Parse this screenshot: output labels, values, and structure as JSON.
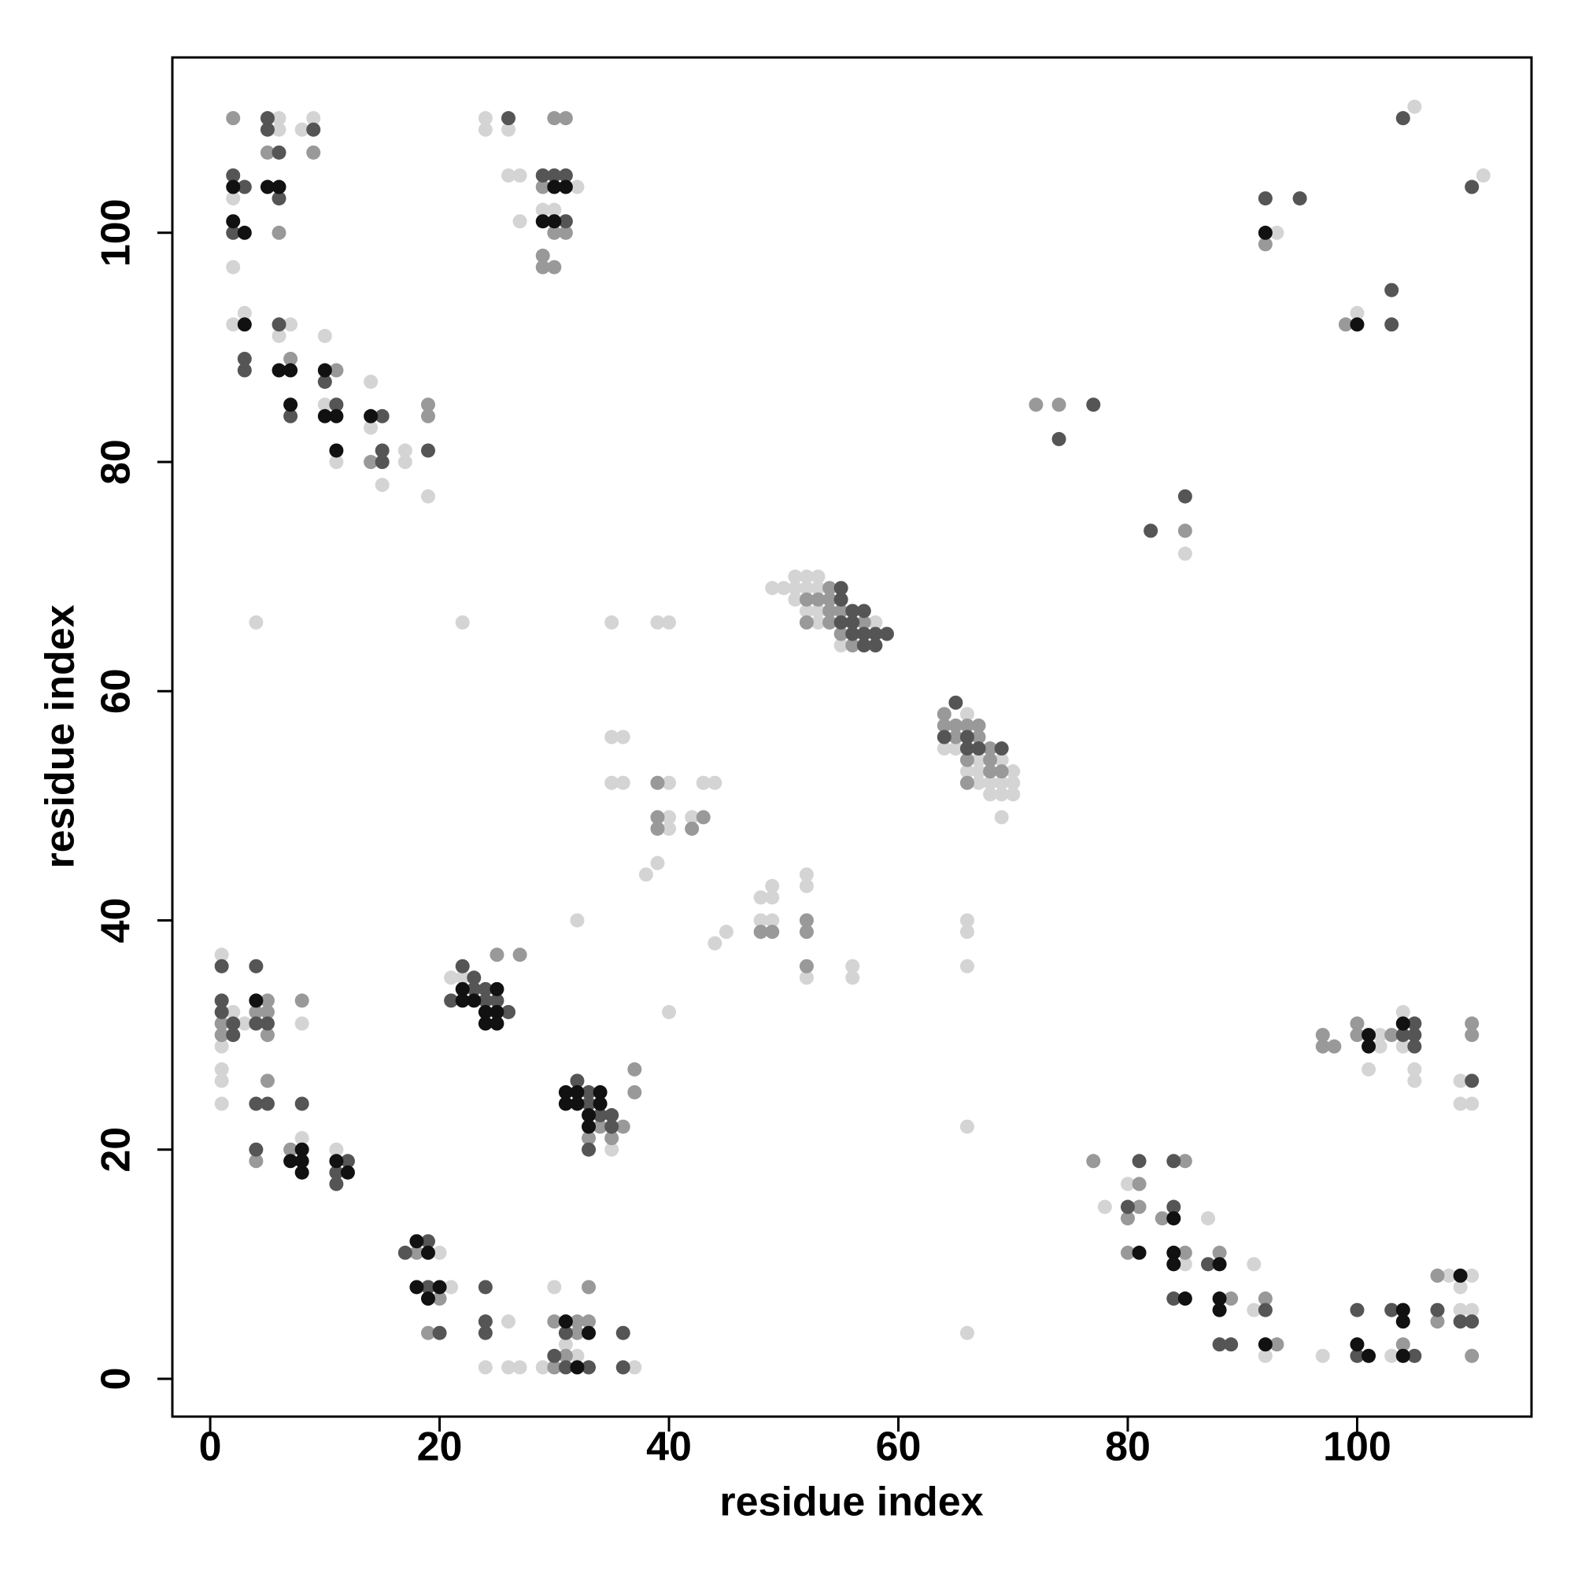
{
  "chart_data": {
    "type": "scatter",
    "x_label": "residue index",
    "y_label": "residue index",
    "xlim": [
      -3.3,
      115.2
    ],
    "ylim": [
      -3.3,
      115.3
    ],
    "xticks": [
      0,
      20,
      40,
      60,
      80,
      100
    ],
    "yticks": [
      0,
      20,
      40,
      60,
      80,
      100
    ],
    "series": [
      {
        "color": "#d4d4d4",
        "x": [
          6,
          9,
          6,
          8,
          2,
          2,
          2,
          3,
          6,
          7,
          10,
          10,
          11,
          14,
          14,
          15,
          17,
          17,
          19,
          4,
          24,
          24,
          26,
          26,
          27,
          27,
          32,
          29,
          30,
          22,
          105,
          111,
          93,
          100,
          85,
          49,
          50,
          51,
          52,
          53,
          51,
          52,
          53,
          51,
          52,
          53,
          53,
          58,
          55,
          35,
          39,
          40,
          66,
          64,
          65,
          67,
          69,
          66,
          67,
          70,
          67,
          68,
          69,
          70,
          68,
          69,
          70,
          69,
          35,
          36,
          35,
          36,
          40,
          43,
          44,
          40,
          42,
          40,
          39,
          38,
          52,
          49,
          48,
          49,
          52,
          48,
          49,
          45,
          44,
          32,
          40,
          56,
          52,
          56,
          66,
          66,
          66,
          66,
          66,
          1,
          2,
          3,
          8,
          1,
          1,
          1,
          1,
          8,
          11,
          20,
          21,
          22,
          21,
          35,
          26,
          24,
          26,
          27,
          30,
          31,
          32,
          29,
          37,
          80,
          78,
          87,
          85,
          91,
          91,
          92,
          97,
          103,
          110,
          108,
          109,
          109,
          110,
          102,
          102,
          101,
          104,
          104,
          105,
          105,
          109,
          109,
          110
        ],
        "y": [
          110,
          110,
          109,
          109,
          103,
          97,
          92,
          93,
          91,
          92,
          91,
          85,
          80,
          87,
          83,
          78,
          81,
          80,
          77,
          66,
          110,
          109,
          109,
          105,
          105,
          101,
          104,
          102,
          102,
          66,
          111,
          105,
          100,
          93,
          72,
          69,
          69,
          70,
          70,
          70,
          69,
          69,
          69,
          68,
          67,
          67,
          66,
          66,
          64,
          66,
          66,
          66,
          58,
          55,
          55,
          54,
          54,
          53,
          53,
          53,
          52,
          52,
          52,
          52,
          51,
          51,
          51,
          49,
          56,
          56,
          52,
          52,
          52,
          52,
          52,
          49,
          49,
          48,
          45,
          44,
          44,
          43,
          42,
          42,
          43,
          40,
          40,
          39,
          38,
          40,
          32,
          36,
          35,
          35,
          40,
          39,
          36,
          22,
          4,
          37,
          32,
          31,
          31,
          29,
          27,
          26,
          24,
          21,
          20,
          11,
          8,
          35,
          35,
          20,
          5,
          1,
          1,
          1,
          8,
          3,
          2,
          1,
          1,
          17,
          15,
          14,
          10,
          10,
          6,
          2,
          2,
          2,
          9,
          9,
          8,
          6,
          6,
          30,
          29,
          27,
          32,
          29,
          27,
          26,
          26,
          24,
          24
        ]
      },
      {
        "color": "#999999",
        "x": [
          2,
          5,
          9,
          6,
          7,
          11,
          19,
          19,
          14,
          29,
          30,
          31,
          30,
          31,
          29,
          29,
          30,
          92,
          99,
          72,
          74,
          85,
          54,
          52,
          53,
          54,
          54,
          55,
          52,
          54,
          57,
          55,
          56,
          64,
          64,
          65,
          66,
          67,
          65,
          67,
          68,
          66,
          68,
          68,
          69,
          66,
          39,
          39,
          43,
          39,
          42,
          52,
          48,
          49,
          52,
          52,
          5,
          4,
          5,
          8,
          1,
          1,
          5,
          5,
          4,
          7,
          18,
          20,
          19,
          25,
          27,
          34,
          36,
          33,
          35,
          37,
          37,
          33,
          30,
          32,
          33,
          32,
          31,
          30,
          77,
          85,
          81,
          81,
          80,
          83,
          80,
          85,
          88,
          89,
          92,
          93,
          104,
          107,
          107,
          110,
          97,
          97,
          98,
          100,
          100,
          103,
          110,
          110
        ],
        "y": [
          110,
          107,
          107,
          100,
          89,
          88,
          85,
          84,
          80,
          104,
          110,
          110,
          100,
          100,
          98,
          97,
          97,
          99,
          92,
          85,
          85,
          74,
          69,
          68,
          68,
          68,
          67,
          67,
          66,
          66,
          66,
          65,
          64,
          58,
          57,
          57,
          57,
          57,
          56,
          56,
          55,
          54,
          54,
          53,
          53,
          52,
          52,
          49,
          49,
          48,
          48,
          40,
          39,
          39,
          39,
          36,
          33,
          32,
          32,
          33,
          31,
          30,
          30,
          26,
          19,
          20,
          11,
          7,
          4,
          37,
          37,
          22,
          22,
          21,
          21,
          27,
          25,
          8,
          5,
          5,
          5,
          4,
          2,
          1,
          19,
          19,
          17,
          15,
          14,
          14,
          11,
          11,
          11,
          7,
          7,
          3,
          3,
          9,
          5,
          2,
          30,
          29,
          29,
          31,
          30,
          30,
          31,
          30
        ]
      },
      {
        "color": "#555555",
        "x": [
          5,
          5,
          9,
          6,
          2,
          3,
          6,
          2,
          6,
          3,
          3,
          10,
          7,
          11,
          15,
          15,
          15,
          19,
          26,
          29,
          30,
          31,
          31,
          104,
          110,
          92,
          95,
          103,
          103,
          77,
          74,
          82,
          85,
          55,
          55,
          56,
          57,
          55,
          56,
          56,
          57,
          58,
          59,
          57,
          58,
          65,
          64,
          66,
          66,
          67,
          69,
          1,
          4,
          1,
          1,
          2,
          4,
          5,
          2,
          4,
          5,
          8,
          4,
          12,
          11,
          11,
          19,
          17,
          19,
          20,
          22,
          23,
          23,
          24,
          21,
          24,
          25,
          26,
          33,
          32,
          33,
          34,
          35,
          35,
          33,
          24,
          24,
          24,
          31,
          36,
          30,
          31,
          33,
          36,
          81,
          84,
          80,
          84,
          87,
          84,
          92,
          88,
          89,
          100,
          100,
          103,
          105,
          107,
          109,
          110,
          105,
          104,
          105,
          105,
          110
        ],
        "y": [
          110,
          109,
          109,
          107,
          105,
          104,
          103,
          100,
          92,
          89,
          88,
          87,
          84,
          85,
          84,
          81,
          80,
          81,
          110,
          105,
          105,
          105,
          101,
          110,
          104,
          103,
          103,
          95,
          92,
          85,
          82,
          74,
          77,
          69,
          68,
          67,
          67,
          66,
          66,
          65,
          65,
          65,
          65,
          64,
          64,
          59,
          56,
          56,
          55,
          55,
          55,
          36,
          36,
          33,
          32,
          31,
          31,
          31,
          30,
          24,
          24,
          24,
          20,
          19,
          18,
          17,
          12,
          11,
          8,
          4,
          36,
          35,
          34,
          34,
          33,
          33,
          33,
          32,
          25,
          26,
          24,
          23,
          23,
          22,
          20,
          8,
          5,
          4,
          4,
          4,
          2,
          1,
          1,
          1,
          19,
          19,
          15,
          15,
          10,
          7,
          6,
          3,
          3,
          6,
          2,
          6,
          2,
          6,
          5,
          5,
          31,
          30,
          30,
          29,
          26
        ]
      },
      {
        "color": "#111111",
        "x": [
          2,
          5,
          6,
          2,
          3,
          3,
          6,
          7,
          10,
          7,
          10,
          11,
          11,
          14,
          30,
          31,
          29,
          30,
          92,
          100,
          4,
          8,
          7,
          8,
          8,
          11,
          12,
          18,
          19,
          18,
          20,
          19,
          22,
          25,
          22,
          23,
          24,
          25,
          24,
          25,
          31,
          32,
          34,
          31,
          32,
          34,
          33,
          33,
          31,
          33,
          32,
          84,
          81,
          84,
          84,
          88,
          85,
          88,
          88,
          92,
          100,
          101,
          104,
          104,
          104,
          109,
          101,
          101,
          104
        ],
        "y": [
          104,
          104,
          104,
          101,
          100,
          92,
          88,
          88,
          88,
          85,
          84,
          84,
          81,
          84,
          104,
          104,
          101,
          101,
          100,
          92,
          33,
          20,
          19,
          19,
          18,
          19,
          18,
          12,
          11,
          8,
          8,
          7,
          34,
          34,
          33,
          33,
          32,
          32,
          31,
          31,
          25,
          25,
          25,
          24,
          24,
          24,
          23,
          22,
          5,
          4,
          1,
          14,
          11,
          11,
          10,
          10,
          7,
          7,
          6,
          3,
          3,
          2,
          6,
          5,
          2,
          9,
          30,
          29,
          31
        ]
      }
    ]
  }
}
